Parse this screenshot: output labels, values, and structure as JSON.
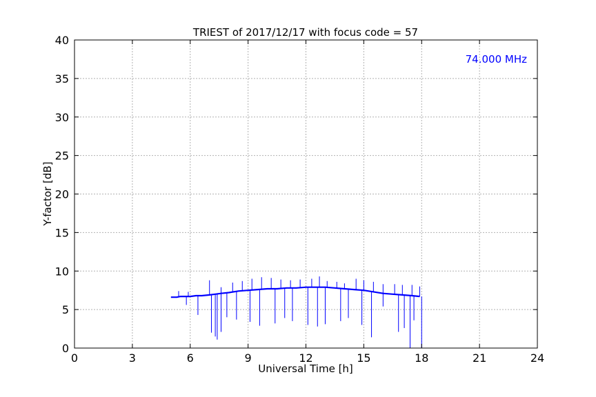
{
  "chart_data": {
    "type": "line",
    "title": "TRIEST of 2017/12/17 with focus code = 57",
    "xlabel": "Universal Time [h]",
    "ylabel": "Y-factor [dB]",
    "xlim": [
      0,
      24
    ],
    "ylim": [
      0,
      40
    ],
    "xticks": [
      0,
      3,
      6,
      9,
      12,
      15,
      18,
      21,
      24
    ],
    "yticks": [
      0,
      5,
      10,
      15,
      20,
      25,
      30,
      35,
      40
    ],
    "x_tick_labels": [
      "0",
      "3",
      "6",
      "9",
      "12",
      "15",
      "18",
      "21",
      "24"
    ],
    "y_tick_labels": [
      "0",
      "5",
      "10",
      "15",
      "20",
      "25",
      "30",
      "35",
      "40"
    ],
    "grid": true,
    "annotation": {
      "text": "74.000 MHz",
      "color": "#0000ff",
      "position": "top-right"
    },
    "series": [
      {
        "color": "#0000ff",
        "x": [
          5.0,
          5.3,
          5.5,
          5.8,
          6.0,
          6.3,
          6.6,
          7.0,
          7.3,
          7.6,
          8.0,
          8.5,
          9.0,
          9.5,
          10.0,
          10.5,
          11.0,
          11.5,
          12.0,
          12.5,
          13.0,
          13.5,
          14.0,
          14.5,
          15.0,
          15.5,
          16.0,
          16.5,
          17.0,
          17.5,
          17.9
        ],
        "values": [
          6.6,
          6.6,
          6.7,
          6.7,
          6.7,
          6.8,
          6.8,
          6.9,
          7.0,
          7.1,
          7.2,
          7.4,
          7.5,
          7.6,
          7.7,
          7.7,
          7.8,
          7.8,
          7.9,
          7.9,
          7.9,
          7.8,
          7.7,
          7.6,
          7.5,
          7.3,
          7.1,
          7.0,
          6.9,
          6.8,
          6.7
        ],
        "spikes_up": [
          [
            5.4,
            7.4
          ],
          [
            5.9,
            7.3
          ],
          [
            7.0,
            8.8
          ],
          [
            7.6,
            7.9
          ],
          [
            8.2,
            8.5
          ],
          [
            8.7,
            8.7
          ],
          [
            9.2,
            9.0
          ],
          [
            9.7,
            9.2
          ],
          [
            10.2,
            9.1
          ],
          [
            10.7,
            8.9
          ],
          [
            11.2,
            8.8
          ],
          [
            11.7,
            8.9
          ],
          [
            12.3,
            9.0
          ],
          [
            12.7,
            9.3
          ],
          [
            13.1,
            8.7
          ],
          [
            13.6,
            8.6
          ],
          [
            14.0,
            8.4
          ],
          [
            14.6,
            9.0
          ],
          [
            15.0,
            8.8
          ],
          [
            15.5,
            8.6
          ],
          [
            16.0,
            8.3
          ],
          [
            16.6,
            8.3
          ],
          [
            17.0,
            8.2
          ],
          [
            17.5,
            8.2
          ],
          [
            17.9,
            8.0
          ]
        ],
        "spikes_down": [
          [
            5.8,
            5.6
          ],
          [
            6.4,
            4.3
          ],
          [
            7.1,
            2.0
          ],
          [
            7.3,
            1.5
          ],
          [
            7.4,
            1.1
          ],
          [
            7.6,
            2.1
          ],
          [
            7.9,
            4.0
          ],
          [
            8.4,
            3.7
          ],
          [
            9.1,
            3.4
          ],
          [
            9.6,
            2.9
          ],
          [
            10.4,
            3.2
          ],
          [
            10.9,
            3.9
          ],
          [
            11.3,
            3.5
          ],
          [
            12.1,
            3.0
          ],
          [
            12.6,
            2.8
          ],
          [
            13.0,
            3.1
          ],
          [
            13.8,
            3.5
          ],
          [
            14.2,
            3.9
          ],
          [
            14.9,
            3.0
          ],
          [
            15.4,
            1.4
          ],
          [
            16.0,
            5.4
          ],
          [
            16.8,
            2.1
          ],
          [
            17.1,
            2.6
          ],
          [
            17.4,
            0.0
          ],
          [
            17.6,
            3.6
          ],
          [
            18.0,
            0.0
          ]
        ]
      }
    ]
  }
}
